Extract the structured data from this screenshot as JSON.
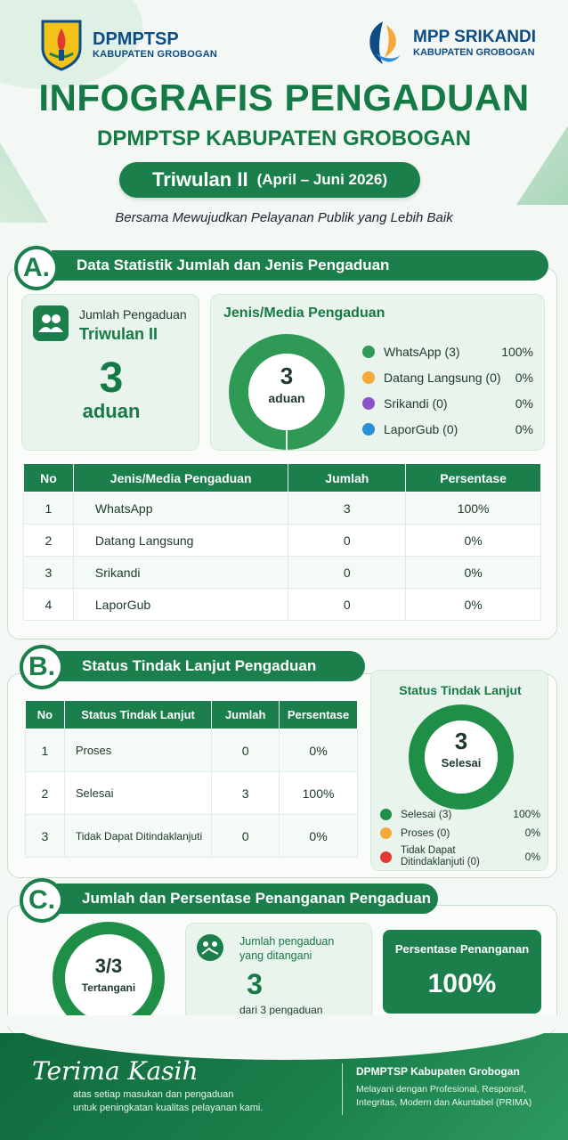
{
  "header": {
    "left_org": "DPMPTSP",
    "left_sub": "KABUPATEN GROBOGAN",
    "right_org": "MPP SRIKANDI",
    "right_sub": "KABUPATEN GROBOGAN",
    "title": "INFOGRAFIS PENGADUAN",
    "subtitle": "DPMPTSP KABUPATEN GROBOGAN",
    "quarter": "Triwulan II",
    "range": "(April – Juni 2026)",
    "tagline": "Bersama Mewujudkan Pelayanan Publik yang Lebih Baik"
  },
  "section_a": {
    "letter": "A.",
    "title": "Data Statistik Jumlah dan Jenis Pengaduan",
    "total_label": "Jumlah Pengaduan",
    "total_period": "Triwulan II",
    "total_value": "3",
    "total_unit": "aduan",
    "donut_title": "Jenis/Media Pengaduan",
    "donut_center_value": "3",
    "donut_center_unit": "aduan",
    "legend": [
      {
        "label": "WhatsApp (3)",
        "pct": "100%",
        "color": "#2e9a56"
      },
      {
        "label": "Datang Langsung (0)",
        "pct": "0%",
        "color": "#f4a93a"
      },
      {
        "label": "Srikandi (0)",
        "pct": "0%",
        "color": "#8e52c8"
      },
      {
        "label": "LaporGub (0)",
        "pct": "0%",
        "color": "#2a8fd8"
      }
    ],
    "table": {
      "headers": [
        "No",
        "Jenis/Media Pengaduan",
        "Jumlah",
        "Persentase"
      ],
      "rows": [
        [
          "1",
          "WhatsApp",
          "3",
          "100%"
        ],
        [
          "2",
          "Datang Langsung",
          "0",
          "0%"
        ],
        [
          "3",
          "Srikandi",
          "0",
          "0%"
        ],
        [
          "4",
          "LaporGub",
          "0",
          "0%"
        ]
      ]
    }
  },
  "section_b": {
    "letter": "B.",
    "title": "Status Tindak Lanjut Pengaduan",
    "table": {
      "headers": [
        "No",
        "Status Tindak Lanjut",
        "Jumlah",
        "Persentase"
      ],
      "rows": [
        [
          "1",
          "Proses",
          "0",
          "0%"
        ],
        [
          "2",
          "Selesai",
          "3",
          "100%"
        ],
        [
          "3",
          "Tidak Dapat Ditindaklanjuti",
          "0",
          "0%"
        ]
      ]
    },
    "donut_title": "Status Tindak Lanjut",
    "donut_center_value": "3",
    "donut_center_unit": "Selesai",
    "legend": [
      {
        "label": "Selesai (3)",
        "pct": "100%",
        "color": "#1f8f48"
      },
      {
        "label": "Proses (0)",
        "pct": "0%",
        "color": "#f4a93a"
      },
      {
        "label_line1": "Tidak Dapat",
        "label_line2": "Ditindaklanjuti (0)",
        "pct": "0%",
        "color": "#e23a2f"
      }
    ]
  },
  "section_c": {
    "letter": "C.",
    "title": "Jumlah dan Persentase Penanganan Pengaduan",
    "ring_value": "3/3",
    "ring_label": "Tertangani",
    "handled_label_line1": "Jumlah pengaduan",
    "handled_label_line2": "yang ditangani",
    "handled_value": "3",
    "handled_of": "dari 3 pengaduan",
    "pct_label": "Persentase Penanganan",
    "pct_value": "100%"
  },
  "footer": {
    "thanks": "Terima Kasih",
    "thanks_line1": "atas setiap masukan dan pengaduan",
    "thanks_line2": "untuk peningkatan kualitas pelayanan kami.",
    "org": "DPMPTSP Kabupaten Grobogan",
    "desc_line1": "Melayani dengan Profesional, Responsif,",
    "desc_line2": "Integritas, Modern dan Akuntabel (PRIMA)"
  },
  "colors": {
    "primary": "#1a7f4b",
    "title_green": "#157a45",
    "brand_blue": "#0e4c86"
  }
}
